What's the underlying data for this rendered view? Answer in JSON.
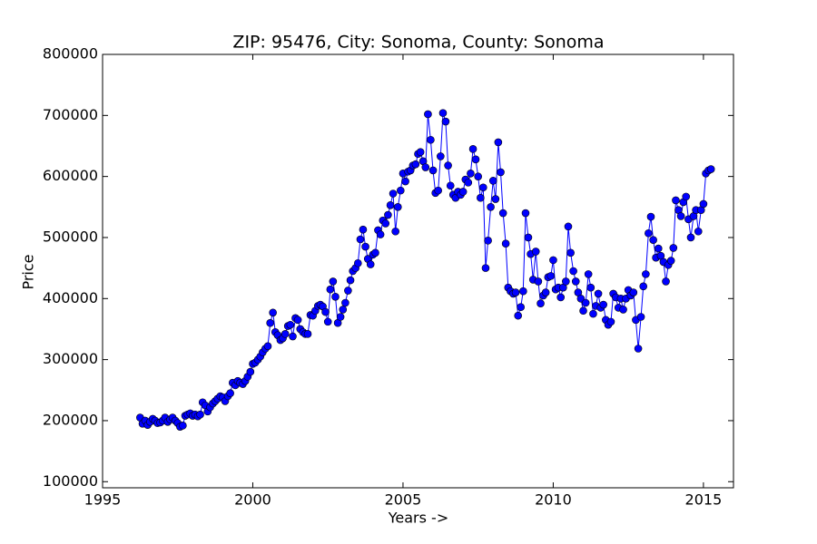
{
  "chart_data": {
    "type": "line",
    "title": "ZIP: 95476, City: Sonoma, County: Sonoma",
    "xlabel": "Years ->",
    "ylabel": "Price",
    "x": [
      1996.25,
      1996.33,
      1996.42,
      1996.5,
      1996.58,
      1996.67,
      1996.75,
      1996.83,
      1996.92,
      1997,
      1997.08,
      1997.17,
      1997.25,
      1997.33,
      1997.42,
      1997.5,
      1997.58,
      1997.67,
      1997.75,
      1997.83,
      1997.92,
      1998,
      1998.08,
      1998.17,
      1998.25,
      1998.33,
      1998.42,
      1998.5,
      1998.58,
      1998.67,
      1998.75,
      1998.83,
      1998.92,
      1999,
      1999.08,
      1999.17,
      1999.25,
      1999.33,
      1999.42,
      1999.5,
      1999.58,
      1999.67,
      1999.75,
      1999.83,
      1999.92,
      2000,
      2000.08,
      2000.17,
      2000.25,
      2000.33,
      2000.42,
      2000.5,
      2000.58,
      2000.67,
      2000.75,
      2000.83,
      2000.92,
      2001,
      2001.08,
      2001.17,
      2001.25,
      2001.33,
      2001.42,
      2001.5,
      2001.58,
      2001.67,
      2001.75,
      2001.83,
      2001.92,
      2002,
      2002.08,
      2002.17,
      2002.25,
      2002.33,
      2002.42,
      2002.5,
      2002.58,
      2002.67,
      2002.75,
      2002.83,
      2002.92,
      2003,
      2003.08,
      2003.17,
      2003.25,
      2003.33,
      2003.42,
      2003.5,
      2003.58,
      2003.67,
      2003.75,
      2003.83,
      2003.92,
      2004,
      2004.08,
      2004.17,
      2004.25,
      2004.33,
      2004.42,
      2004.5,
      2004.58,
      2004.67,
      2004.75,
      2004.83,
      2004.92,
      2005,
      2005.08,
      2005.17,
      2005.25,
      2005.33,
      2005.42,
      2005.5,
      2005.58,
      2005.67,
      2005.75,
      2005.83,
      2005.92,
      2006,
      2006.08,
      2006.17,
      2006.25,
      2006.33,
      2006.42,
      2006.5,
      2006.58,
      2006.67,
      2006.75,
      2006.83,
      2006.92,
      2007,
      2007.08,
      2007.17,
      2007.25,
      2007.33,
      2007.42,
      2007.5,
      2007.58,
      2007.67,
      2007.75,
      2007.83,
      2007.92,
      2008,
      2008.08,
      2008.17,
      2008.25,
      2008.33,
      2008.42,
      2008.5,
      2008.58,
      2008.67,
      2008.75,
      2008.83,
      2008.92,
      2009,
      2009.08,
      2009.17,
      2009.25,
      2009.33,
      2009.42,
      2009.5,
      2009.58,
      2009.67,
      2009.75,
      2009.83,
      2009.92,
      2010,
      2010.08,
      2010.17,
      2010.25,
      2010.33,
      2010.42,
      2010.5,
      2010.58,
      2010.67,
      2010.75,
      2010.83,
      2010.92,
      2011,
      2011.08,
      2011.17,
      2011.25,
      2011.33,
      2011.42,
      2011.5,
      2011.58,
      2011.67,
      2011.75,
      2011.83,
      2011.92,
      2012,
      2012.08,
      2012.17,
      2012.25,
      2012.33,
      2012.42,
      2012.5,
      2012.58,
      2012.67,
      2012.75,
      2012.83,
      2012.92,
      2013,
      2013.08,
      2013.17,
      2013.25,
      2013.33,
      2013.42,
      2013.5,
      2013.58,
      2013.67,
      2013.75,
      2013.83,
      2013.92,
      2014,
      2014.08,
      2014.17,
      2014.25,
      2014.33,
      2014.42,
      2014.5,
      2014.58,
      2014.67,
      2014.75,
      2014.83,
      2014.92,
      2015,
      2015.08,
      2015.17,
      2015.25
    ],
    "values": [
      205000,
      195000,
      200000,
      193000,
      198000,
      203000,
      200000,
      196000,
      197000,
      200000,
      205000,
      198000,
      202000,
      205000,
      200000,
      196000,
      190000,
      192000,
      208000,
      210000,
      212000,
      208000,
      210000,
      207000,
      210000,
      230000,
      225000,
      215000,
      222000,
      228000,
      232000,
      236000,
      240000,
      238000,
      232000,
      240000,
      245000,
      262000,
      258000,
      265000,
      262000,
      260000,
      265000,
      272000,
      280000,
      293000,
      295000,
      300000,
      305000,
      312000,
      318000,
      322000,
      360000,
      377000,
      345000,
      340000,
      332000,
      335000,
      342000,
      355000,
      357000,
      338000,
      368000,
      365000,
      350000,
      345000,
      342000,
      342000,
      373000,
      372000,
      380000,
      388000,
      390000,
      387000,
      378000,
      362000,
      415000,
      428000,
      403000,
      360000,
      370000,
      382000,
      393000,
      413000,
      430000,
      445000,
      450000,
      458000,
      497000,
      513000,
      485000,
      465000,
      456000,
      472000,
      475000,
      512000,
      505000,
      528000,
      523000,
      537000,
      553000,
      572000,
      510000,
      550000,
      577000,
      605000,
      592000,
      608000,
      610000,
      618000,
      620000,
      637000,
      640000,
      625000,
      615000,
      702000,
      660000,
      610000,
      573000,
      577000,
      633000,
      704000,
      690000,
      618000,
      585000,
      570000,
      565000,
      575000,
      570000,
      575000,
      595000,
      590000,
      605000,
      645000,
      628000,
      600000,
      565000,
      582000,
      450000,
      495000,
      550000,
      593000,
      563000,
      656000,
      607000,
      540000,
      490000,
      418000,
      412000,
      408000,
      410000,
      372000,
      386000,
      412000,
      540000,
      500000,
      473000,
      431000,
      477000,
      428000,
      392000,
      405000,
      410000,
      435000,
      437000,
      463000,
      415000,
      418000,
      402000,
      418000,
      428000,
      518000,
      475000,
      445000,
      428000,
      410000,
      400000,
      380000,
      393000,
      440000,
      418000,
      375000,
      388000,
      408000,
      385000,
      390000,
      365000,
      357000,
      362000,
      408000,
      402000,
      385000,
      400000,
      382000,
      400000,
      414000,
      405000,
      410000,
      365000,
      318000,
      370000,
      420000,
      440000,
      507000,
      534000,
      496000,
      467000,
      482000,
      470000,
      460000,
      428000,
      455000,
      462000,
      483000,
      561000,
      545000,
      535000,
      558000,
      567000,
      530000,
      500000,
      535000,
      545000,
      510000,
      545000,
      555000,
      605000,
      610000,
      612000
    ],
    "color": "#0000ff",
    "xlim": [
      1995,
      2016
    ],
    "xticks": [
      1995,
      2000,
      2005,
      2010,
      2015
    ],
    "ylim": [
      90000,
      800000
    ],
    "yticks": [
      100000,
      200000,
      300000,
      400000,
      500000,
      600000,
      700000,
      800000
    ]
  }
}
